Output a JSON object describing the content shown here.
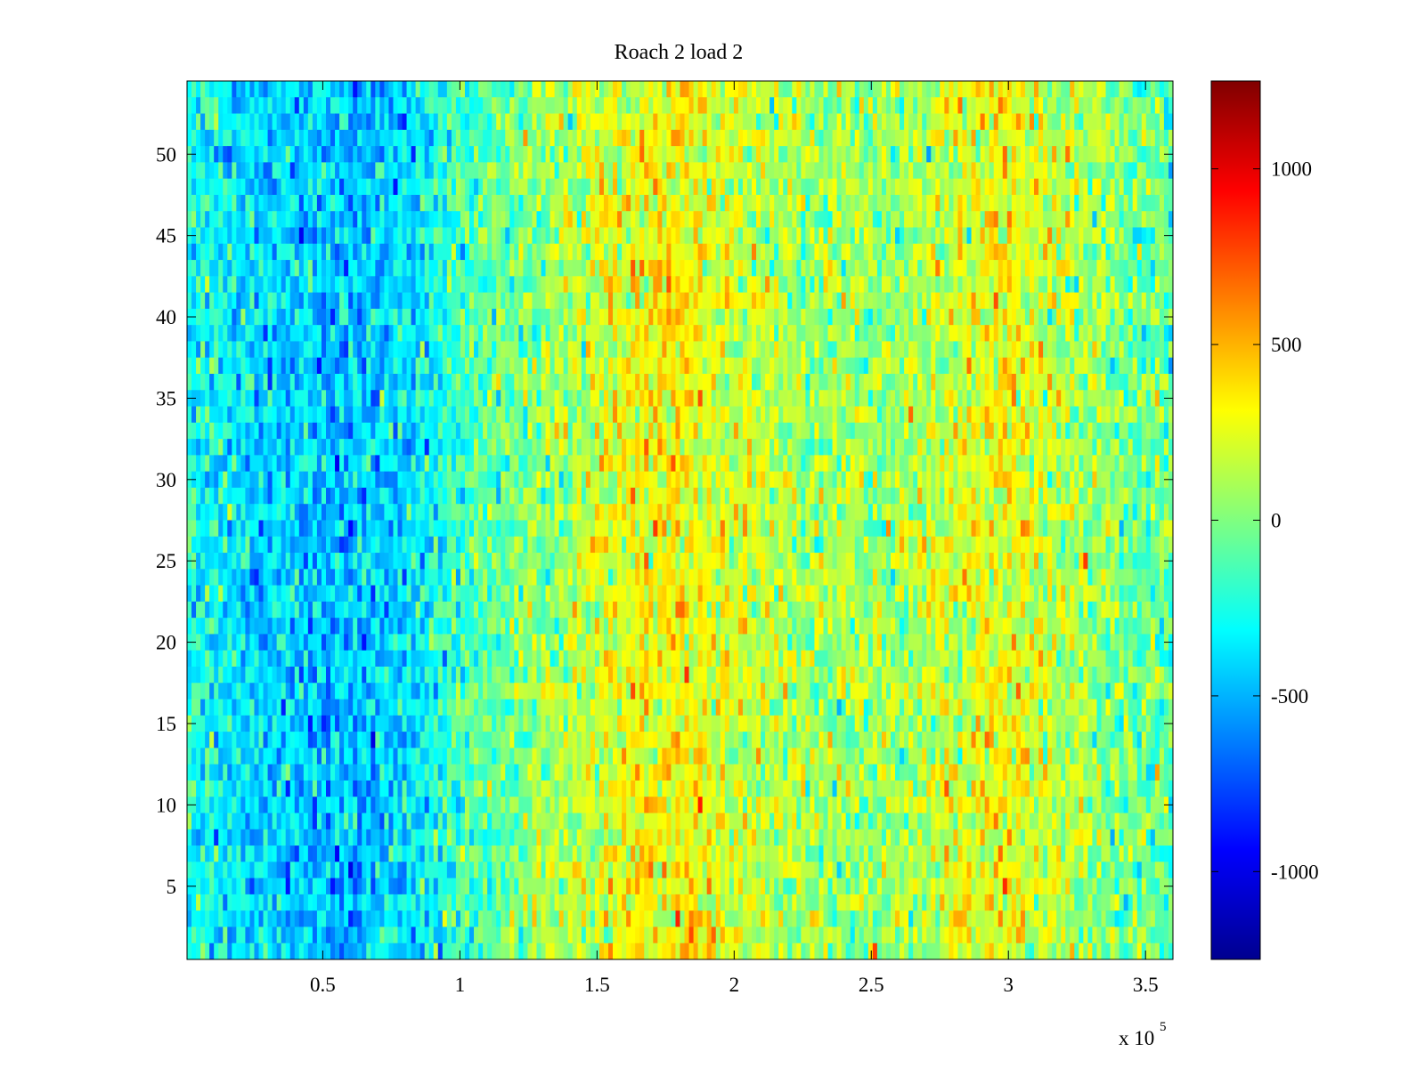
{
  "chart_data": {
    "type": "heatmap",
    "title": "Roach 2 load 2",
    "xlabel": "",
    "ylabel": "",
    "x_multiplier": {
      "base": "x 10",
      "exponent": "5"
    },
    "xlim": [
      0.005,
      3.6
    ],
    "ylim": [
      0.5,
      54.5
    ],
    "x_ticks": [
      0.5,
      1,
      1.5,
      2,
      2.5,
      3,
      3.5
    ],
    "x_tick_labels": [
      "0.5",
      "1",
      "1.5",
      "2",
      "2.5",
      "3",
      "3.5"
    ],
    "y_ticks": [
      5,
      10,
      15,
      20,
      25,
      30,
      35,
      40,
      45,
      50
    ],
    "y_tick_labels": [
      "5",
      "10",
      "15",
      "20",
      "25",
      "30",
      "35",
      "40",
      "45",
      "50"
    ],
    "rows": 54,
    "colormap": "jet",
    "clim": [
      -1250,
      1250
    ],
    "colorbar": {
      "ticks": [
        -1000,
        -500,
        0,
        500,
        1000
      ],
      "tick_labels": [
        "-1000",
        "-500",
        "0",
        "500",
        "1000"
      ],
      "placement": "right"
    },
    "value_profile_by_x": [
      {
        "x": 0.0,
        "mean": -250
      },
      {
        "x": 0.3,
        "mean": -420
      },
      {
        "x": 0.6,
        "mean": -470
      },
      {
        "x": 0.85,
        "mean": -360
      },
      {
        "x": 1.0,
        "mean": -150
      },
      {
        "x": 1.3,
        "mean": 50
      },
      {
        "x": 1.6,
        "mean": 260
      },
      {
        "x": 1.8,
        "mean": 320
      },
      {
        "x": 2.0,
        "mean": 180
      },
      {
        "x": 2.3,
        "mean": 60
      },
      {
        "x": 2.6,
        "mean": 50
      },
      {
        "x": 2.9,
        "mean": 250
      },
      {
        "x": 3.0,
        "mean": 280
      },
      {
        "x": 3.2,
        "mean": 130
      },
      {
        "x": 3.45,
        "mean": -50
      },
      {
        "x": 3.6,
        "mean": -80
      }
    ],
    "grid": false
  }
}
